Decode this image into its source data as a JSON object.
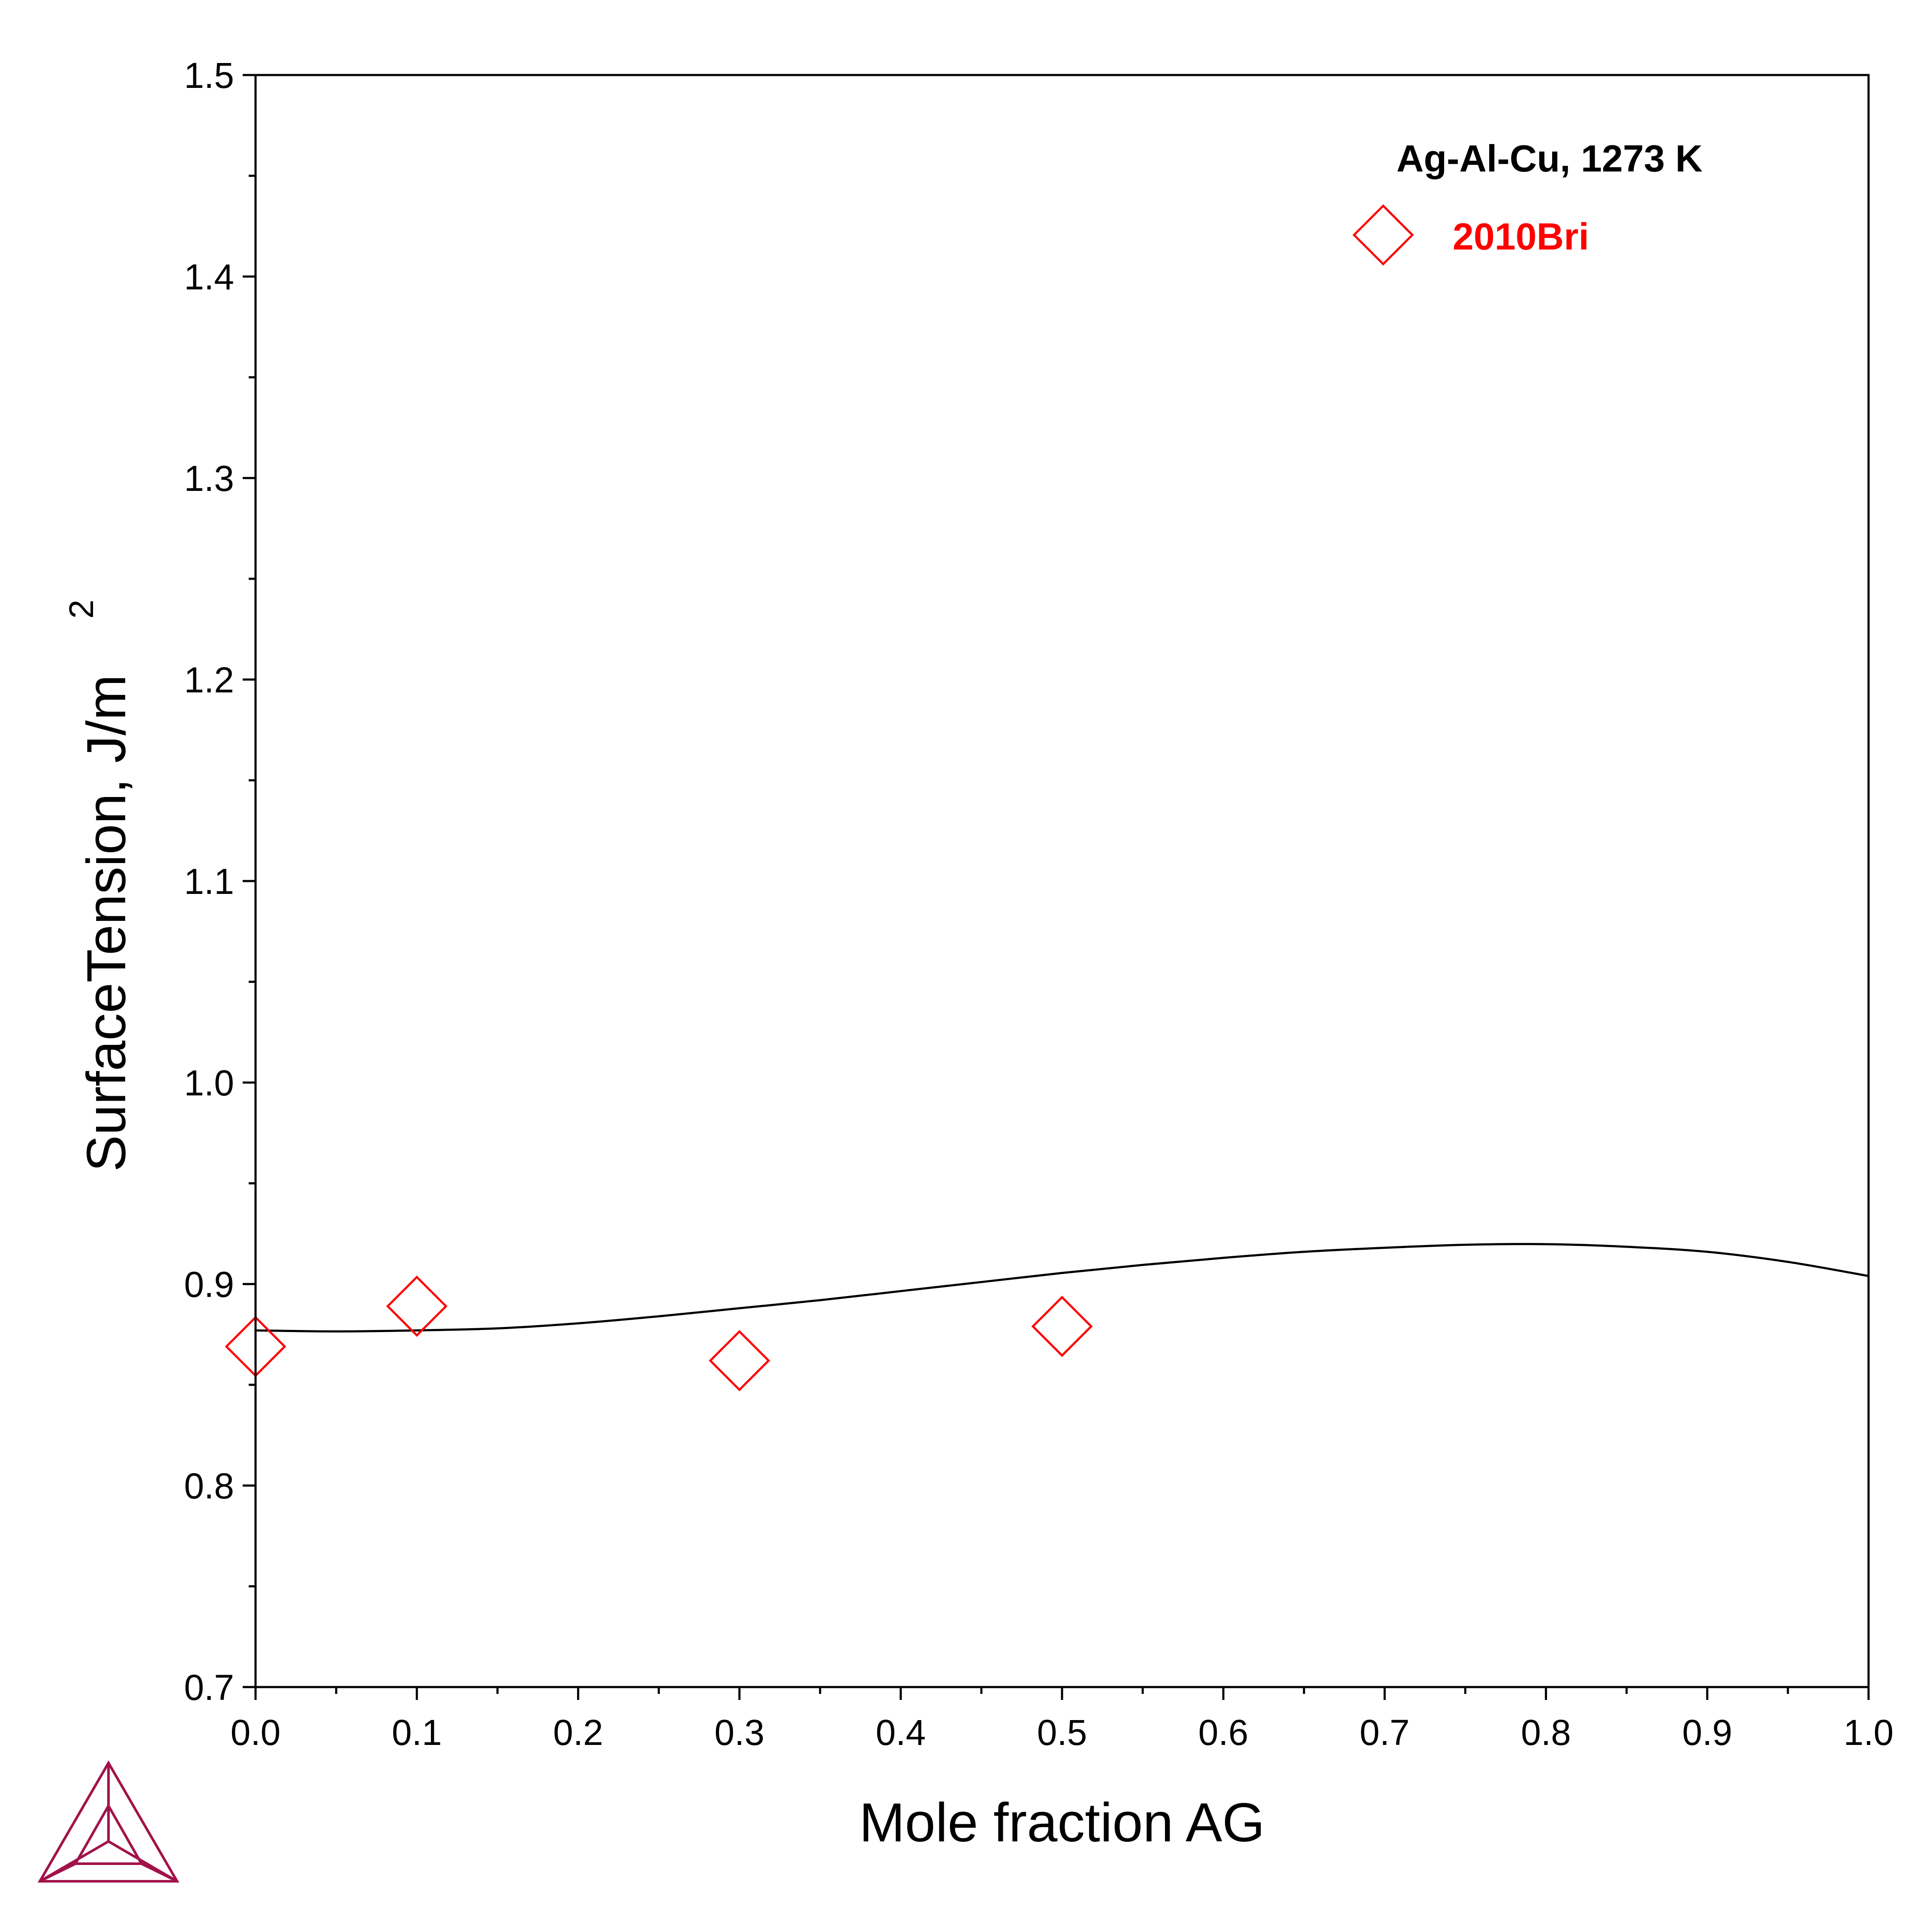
{
  "chart_data": {
    "type": "scatter",
    "title": "",
    "xlabel": "Mole fraction AG",
    "ylabel": "SurfaceTension, J/m",
    "ylabel_superscript": "2",
    "xlim": [
      0.0,
      1.0
    ],
    "ylim": [
      0.7,
      1.5
    ],
    "x_ticks": [
      "0.0",
      "0.1",
      "0.2",
      "0.3",
      "0.4",
      "0.5",
      "0.6",
      "0.7",
      "0.8",
      "0.9",
      "1.0"
    ],
    "y_ticks": [
      "0.7",
      "0.8",
      "0.9",
      "1.0",
      "1.1",
      "1.2",
      "1.3",
      "1.4",
      "1.5"
    ],
    "grid": false,
    "legend": {
      "title": "Ag-Al-Cu, 1273 K",
      "placement": "top-right"
    },
    "series": [
      {
        "kind": "line",
        "color": "#000000",
        "x": [
          0.0,
          0.05,
          0.1,
          0.15,
          0.2,
          0.25,
          0.3,
          0.35,
          0.4,
          0.45,
          0.5,
          0.55,
          0.6,
          0.65,
          0.7,
          0.75,
          0.8,
          0.85,
          0.9,
          0.95,
          1.0
        ],
        "y": [
          0.877,
          0.8765,
          0.877,
          0.878,
          0.8805,
          0.884,
          0.888,
          0.892,
          0.8965,
          0.901,
          0.9055,
          0.9095,
          0.913,
          0.916,
          0.918,
          0.9195,
          0.9198,
          0.9185,
          0.916,
          0.911,
          0.904
        ]
      },
      {
        "kind": "scatter",
        "name": "2010Bri",
        "marker": "diamond",
        "color": "#ff0000",
        "x": [
          0.0,
          0.1,
          0.3,
          0.5
        ],
        "y": [
          0.869,
          0.889,
          0.862,
          0.879
        ]
      }
    ]
  },
  "logo": {
    "name": "thermo-calc-logo",
    "color": "#a2124a"
  }
}
